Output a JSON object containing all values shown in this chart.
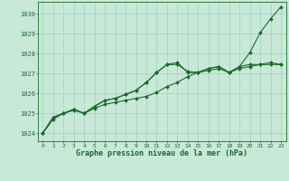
{
  "background_color": "#c8e8d8",
  "grid_color": "#99ccbb",
  "line_color": "#1a6b2a",
  "xlabel": "Graphe pression niveau de la mer (hPa)",
  "xlabel_color": "#1a6b2a",
  "ylim": [
    1023.6,
    1030.6
  ],
  "xlim": [
    -0.5,
    23.5
  ],
  "yticks": [
    1024,
    1025,
    1026,
    1027,
    1028,
    1029,
    1030
  ],
  "xticks": [
    0,
    1,
    2,
    3,
    4,
    5,
    6,
    7,
    8,
    9,
    10,
    11,
    12,
    13,
    14,
    15,
    16,
    17,
    18,
    19,
    20,
    21,
    22,
    23
  ],
  "series1": [
    1024.0,
    1024.7,
    1025.0,
    1025.15,
    1025.0,
    1025.25,
    1025.45,
    1025.55,
    1025.65,
    1025.75,
    1025.85,
    1026.05,
    1026.35,
    1026.55,
    1026.85,
    1027.05,
    1027.15,
    1027.25,
    1027.05,
    1027.25,
    1027.35,
    1027.45,
    1027.45,
    1027.45
  ],
  "series2": [
    1024.0,
    1024.8,
    1025.0,
    1025.2,
    1025.0,
    1025.35,
    1025.65,
    1025.75,
    1025.95,
    1026.15,
    1026.55,
    1027.05,
    1027.45,
    1027.45,
    1027.1,
    1027.05,
    1027.25,
    1027.35,
    1027.05,
    1027.35,
    1028.05,
    1029.05,
    1029.75,
    1030.35
  ],
  "series3": [
    1024.0,
    1024.8,
    1025.0,
    1025.2,
    1025.0,
    1025.35,
    1025.65,
    1025.75,
    1025.95,
    1026.15,
    1026.55,
    1027.05,
    1027.45,
    1027.55,
    1027.05,
    1027.05,
    1027.25,
    1027.35,
    1027.05,
    1027.35,
    1027.45,
    1027.45,
    1027.55,
    1027.45
  ],
  "tick_fontsize": 4.5,
  "xlabel_fontsize": 6.0,
  "marker_size": 2.0,
  "line_width": 0.8
}
